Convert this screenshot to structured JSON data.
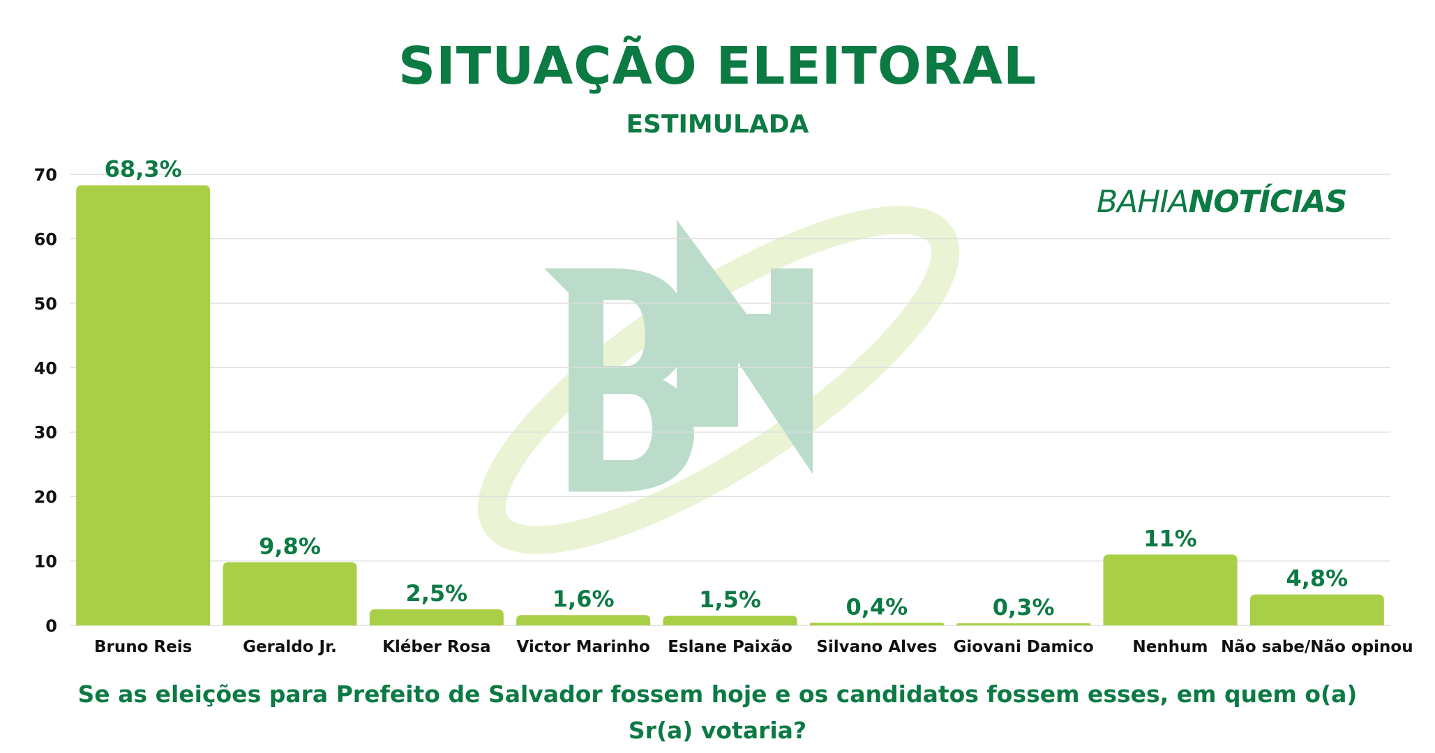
{
  "title": "SITUAÇÃO ELEITORAL",
  "subtitle": "ESTIMULADA",
  "question": "Se as eleições para Prefeito de Salvador fossem hoje e os candidatos fossem esses, em quem o(a) Sr(a) votaria?",
  "brand": {
    "part1": "BAHIA",
    "part2": "NOTÍCIAS",
    "watermark_icon": "bn-logo-icon"
  },
  "colors": {
    "bar": "#a8cf45",
    "text": "#0c7a43",
    "axis_text": "#111111",
    "grid": "#dddddd"
  },
  "chart_data": {
    "type": "bar",
    "categories": [
      "Bruno Reis",
      "Geraldo Jr.",
      "Kléber Rosa",
      "Victor Marinho",
      "Eslane Paixão",
      "Silvano Alves",
      "Giovani Damico",
      "Nenhum",
      "Não sabe/Não opinou"
    ],
    "values": [
      68.3,
      9.8,
      2.5,
      1.6,
      1.5,
      0.4,
      0.3,
      11,
      4.8
    ],
    "value_labels": [
      "68,3%",
      "9,8%",
      "2,5%",
      "1,6%",
      "1,5%",
      "0,4%",
      "0,3%",
      "11%",
      "4,8%"
    ],
    "y_ticks": [
      0,
      10,
      20,
      30,
      40,
      50,
      60,
      70
    ],
    "ylim": [
      0,
      70
    ],
    "grid": true,
    "legend": "none"
  }
}
